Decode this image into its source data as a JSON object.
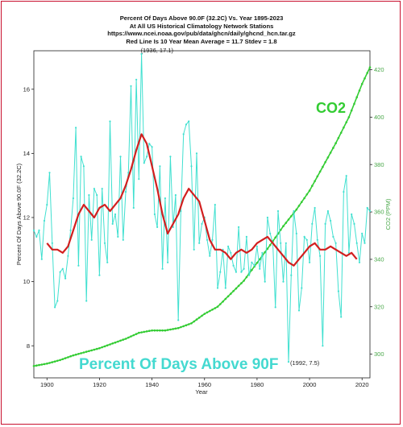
{
  "chart_data": {
    "type": "line",
    "title": "Percent Of Days Above 90.0F (32.2C) Vs. Year 1895-2023",
    "subtitle_lines": [
      "At All US Historical Climatology Network Stations",
      "https://www.ncei.noaa.gov/pub/data/ghcn/daily/ghcnd_hcn.tar.gz",
      "Red Line Is 10 Year Mean  Average = 11.7 Stdev = 1.8"
    ],
    "xlabel": "Year",
    "ylabel": "Percent Of Days Above 90.0F (32.2C)",
    "y2label": "CO2 (PPM)",
    "xlim": [
      1895,
      2023
    ],
    "ylim": [
      7,
      17.2
    ],
    "y2lim": [
      290,
      428
    ],
    "x_ticks": [
      1900,
      1920,
      1940,
      1960,
      1980,
      2000,
      2020
    ],
    "y_ticks": [
      8,
      10,
      12,
      14,
      16
    ],
    "y2_ticks": [
      300,
      320,
      340,
      360,
      380,
      400,
      420
    ],
    "grid": false,
    "annotations": [
      {
        "text": "(1936, 17.1)",
        "x": 1936,
        "y": 17.1
      },
      {
        "text": "(1992, 7.5)",
        "x": 1992,
        "y": 7.5
      }
    ],
    "big_labels": {
      "co2": "CO2",
      "percent": "Percent Of Days Above 90F"
    },
    "colors": {
      "percent": "#40e0d0",
      "mean": "#d21f1f",
      "co2": "#33cc33",
      "frame": "#c8102e"
    },
    "series": [
      {
        "name": "Percent Of Days Above 90F",
        "axis": "left",
        "x": [
          1895,
          1896,
          1897,
          1898,
          1899,
          1900,
          1901,
          1902,
          1903,
          1904,
          1905,
          1906,
          1907,
          1908,
          1909,
          1910,
          1911,
          1912,
          1913,
          1914,
          1915,
          1916,
          1917,
          1918,
          1919,
          1920,
          1921,
          1922,
          1923,
          1924,
          1925,
          1926,
          1927,
          1928,
          1929,
          1930,
          1931,
          1932,
          1933,
          1934,
          1935,
          1936,
          1937,
          1938,
          1939,
          1940,
          1941,
          1942,
          1943,
          1944,
          1945,
          1946,
          1947,
          1948,
          1949,
          1950,
          1951,
          1952,
          1953,
          1954,
          1955,
          1956,
          1957,
          1958,
          1959,
          1960,
          1961,
          1962,
          1963,
          1964,
          1965,
          1966,
          1967,
          1968,
          1969,
          1970,
          1971,
          1972,
          1973,
          1974,
          1975,
          1976,
          1977,
          1978,
          1979,
          1980,
          1981,
          1982,
          1983,
          1984,
          1985,
          1986,
          1987,
          1988,
          1989,
          1990,
          1991,
          1992,
          1993,
          1994,
          1995,
          1996,
          1997,
          1998,
          1999,
          2000,
          2001,
          2002,
          2003,
          2004,
          2005,
          2006,
          2007,
          2008,
          2009,
          2010,
          2011,
          2012,
          2013,
          2014,
          2015,
          2016,
          2017,
          2018,
          2019,
          2020,
          2021,
          2022,
          2023
        ],
        "y": [
          11.6,
          11.4,
          11.6,
          10.7,
          11.9,
          12.4,
          13.4,
          11.2,
          9.2,
          9.4,
          10.3,
          10.4,
          10.1,
          10.8,
          11.6,
          12.6,
          14.8,
          10.5,
          13.9,
          13.6,
          9.4,
          12.7,
          11.3,
          12.9,
          12.7,
          10.2,
          12.9,
          11.2,
          10.6,
          15.0,
          11.8,
          12.1,
          11.4,
          13.9,
          11.3,
          12.8,
          13.4,
          16.1,
          12.3,
          16.3,
          13.2,
          17.1,
          13.7,
          13.9,
          14.3,
          14.2,
          12.1,
          11.7,
          13.6,
          10.4,
          12.6,
          10.6,
          13.9,
          11.7,
          12.7,
          8.8,
          12.2,
          14.6,
          14.9,
          15.0,
          13.6,
          11.0,
          14.0,
          11.2,
          11.8,
          12.0,
          11.3,
          10.8,
          11.3,
          12.4,
          9.8,
          10.3,
          11.0,
          9.8,
          11.1,
          10.9,
          10.5,
          10.3,
          11.7,
          10.3,
          10.4,
          11.4,
          10.2,
          10.6,
          10.5,
          11.1,
          10.4,
          10.9,
          10.0,
          12.0,
          11.5,
          11.2,
          9.2,
          12.2,
          11.2,
          10.0,
          11.2,
          7.5,
          10.2,
          12.2,
          11.5,
          9.1,
          9.8,
          11.4,
          11.3,
          10.6,
          11.8,
          12.3,
          11.3,
          10.8,
          8.0,
          11.8,
          12.2,
          11.9,
          11.4,
          11.2,
          9.7,
          8.9,
          12.8,
          13.3,
          10.9,
          12.1,
          11.8,
          11.2,
          10.6,
          11.5,
          11.2,
          12.3,
          12.2
        ]
      },
      {
        "name": "10 Year Mean",
        "axis": "left",
        "x": [
          1900,
          1902,
          1904,
          1906,
          1908,
          1910,
          1912,
          1914,
          1916,
          1918,
          1920,
          1922,
          1924,
          1926,
          1928,
          1930,
          1932,
          1934,
          1936,
          1938,
          1940,
          1942,
          1944,
          1946,
          1948,
          1950,
          1952,
          1954,
          1956,
          1958,
          1960,
          1962,
          1964,
          1966,
          1968,
          1970,
          1972,
          1974,
          1976,
          1978,
          1980,
          1982,
          1984,
          1986,
          1988,
          1990,
          1992,
          1994,
          1996,
          1998,
          2000,
          2002,
          2004,
          2006,
          2008,
          2010,
          2012,
          2014,
          2016,
          2018
        ],
        "y": [
          11.2,
          11.0,
          11.0,
          10.9,
          11.1,
          11.6,
          12.1,
          12.4,
          12.2,
          12.0,
          12.3,
          12.4,
          12.2,
          12.4,
          12.6,
          13.0,
          13.5,
          14.1,
          14.6,
          14.3,
          13.6,
          12.9,
          12.1,
          11.5,
          11.8,
          12.1,
          12.6,
          12.9,
          12.7,
          12.5,
          11.9,
          11.3,
          11.0,
          11.0,
          10.9,
          10.7,
          10.9,
          11.0,
          10.9,
          11.0,
          11.2,
          11.3,
          11.4,
          11.2,
          11.0,
          10.8,
          10.6,
          10.5,
          10.7,
          10.9,
          11.1,
          11.2,
          11.0,
          11.0,
          11.1,
          11.0,
          10.9,
          10.8,
          10.9,
          10.7
        ]
      },
      {
        "name": "CO2",
        "axis": "right",
        "x": [
          1895,
          1900,
          1905,
          1910,
          1915,
          1920,
          1925,
          1930,
          1935,
          1940,
          1945,
          1950,
          1955,
          1960,
          1965,
          1970,
          1975,
          1980,
          1985,
          1990,
          1995,
          2000,
          2005,
          2010,
          2015,
          2020,
          2023
        ],
        "y": [
          295,
          296,
          297.5,
          299.5,
          301,
          302.5,
          304.5,
          306.5,
          309,
          310,
          310,
          311,
          313,
          317,
          320,
          325.5,
          331,
          338.5,
          346,
          354,
          361,
          369,
          379,
          389,
          400,
          414,
          421
        ]
      }
    ]
  }
}
